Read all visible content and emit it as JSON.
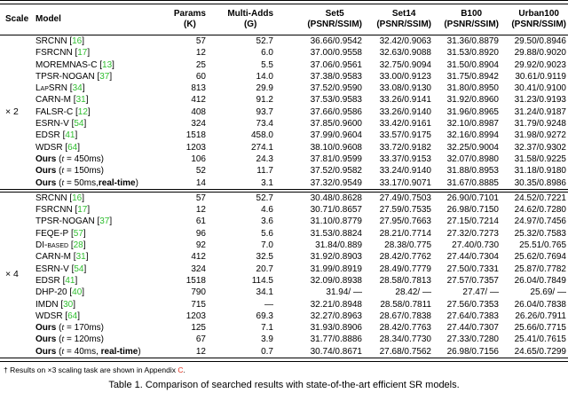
{
  "colors": {
    "citation_green": "#2fbe2f",
    "ref_red": "#e0301e"
  },
  "page": {
    "footnote": {
      "dagger": "†",
      "text_before": " Results on ×3 scaling task are shown in Appendix ",
      "appendix_ref": "C",
      "text_after": "."
    },
    "caption": "Table 1. Comparison of searched results with state-of-the-art efficient SR models."
  },
  "table": {
    "columns": [
      {
        "line1": "Scale",
        "line2": ""
      },
      {
        "line1": "Model",
        "line2": ""
      },
      {
        "line1": "Params",
        "line2": "(K)"
      },
      {
        "line1": "Multi-Adds",
        "line2": "(G)"
      },
      {
        "line1": "Set5",
        "line2": "(PSNR/SSIM)"
      },
      {
        "line1": "Set14",
        "line2": "(PSNR/SSIM)"
      },
      {
        "line1": "B100",
        "line2": "(PSNR/SSIM)"
      },
      {
        "line1": "Urban100",
        "line2": "(PSNR/SSIM)"
      }
    ],
    "sections": [
      {
        "scale": "× 2",
        "rows": [
          {
            "model": "SRCNN",
            "cite": "16",
            "params": "57",
            "madds": "52.7",
            "set5": "36.66/0.9542",
            "set14": "32.42/0.9063",
            "b100": "31.36/0.8879",
            "urban100": "29.50/0.8946"
          },
          {
            "model": "FSRCNN",
            "cite": "17",
            "params": "12",
            "madds": "6.0",
            "set5": "37.00/0.9558",
            "set14": "32.63/0.9088",
            "b100": "31.53/0.8920",
            "urban100": "29.88/0.9020"
          },
          {
            "model": "MOREMNAS-C",
            "cite": "13",
            "params": "25",
            "madds": "5.5",
            "set5": "37.06/0.9561",
            "set14": "32.75/0.9094",
            "b100": "31.50/0.8904",
            "urban100": "29.92/0.9023"
          },
          {
            "model": "TPSR-NOGAN",
            "cite": "37",
            "params": "60",
            "madds": "14.0",
            "set5": "37.38/0.9583",
            "set14": "33.00/0.9123",
            "b100": "31.75/0.8942",
            "urban100": "30.61/0.9119"
          },
          {
            "model": "LapSRN",
            "cite": "34",
            "params": "813",
            "madds": "29.9",
            "set5": "37.52/0.9590",
            "set14": "33.08/0.9130",
            "b100": "31.80/0.8950",
            "urban100": "30.41/0.9100"
          },
          {
            "model": "CARN-M",
            "cite": "31",
            "params": "412",
            "madds": "91.2",
            "set5": "37.53/0.9583",
            "set14": "33.26/0.9141",
            "b100": "31.92/0.8960",
            "urban100": "31.23/0.9193"
          },
          {
            "model": "FALSR-C",
            "cite": "12",
            "params": "408",
            "madds": "93.7",
            "set5": "37.66/0.9586",
            "set14": "33.26/0.9140",
            "b100": "31.96/0.8965",
            "urban100": "31.24/0.9187"
          },
          {
            "model": "ESRN-V",
            "cite": "54",
            "params": "324",
            "madds": "73.4",
            "set5": "37.85/0.9600",
            "set14": "33.42/0.9161",
            "b100": "32.10/0.8987",
            "urban100": "31.79/0.9248"
          },
          {
            "model": "EDSR",
            "cite": "41",
            "params": "1518",
            "madds": "458.0",
            "set5": "37.99/0.9604",
            "set14": "33.57/0.9175",
            "b100": "32.16/0.8994",
            "urban100": "31.98/0.9272"
          },
          {
            "model": "WDSR",
            "cite": "64",
            "params": "1203",
            "madds": "274.1",
            "set5": "38.10/0.9608",
            "set14": "33.72/0.9182",
            "b100": "32.25/0.9004",
            "urban100": "32.37/0.9302"
          },
          {
            "model": "Ours",
            "time": "450ms",
            "params": "106",
            "madds": "24.3",
            "set5": "37.81/0.9599",
            "set14": "33.37/0.9153",
            "b100": "32.07/0.8980",
            "urban100": "31.58/0.9225"
          },
          {
            "model": "Ours",
            "time": "150ms",
            "params": "52",
            "madds": "11.7",
            "set5": "37.52/0.9582",
            "set14": "33.24/0.9140",
            "b100": "31.88/0.8953",
            "urban100": "31.18/0.9180"
          },
          {
            "model": "Ours",
            "time": "50ms",
            "rtsep": ",",
            "realtime": "real-time",
            "params": "14",
            "madds": "3.1",
            "set5": "37.32/0.9549",
            "set14": "33.17/0.9071",
            "b100": "31.67/0.8885",
            "urban100": "30.35/0.8986"
          }
        ]
      },
      {
        "scale": "× 4",
        "rows": [
          {
            "model": "SRCNN",
            "cite": "16",
            "params": "57",
            "madds": "52.7",
            "set5": "30.48/0.8628",
            "set14": "27.49/0.7503",
            "b100": "26.90/0.7101",
            "urban100": "24.52/0.7221"
          },
          {
            "model": "FSRCNN",
            "cite": "17",
            "params": "12",
            "madds": "4.6",
            "set5": "30.71/0.8657",
            "set14": "27.59/0.7535",
            "b100": "26.98/0.7150",
            "urban100": "24.62/0.7280"
          },
          {
            "model": "TPSR-NOGAN",
            "cite": "37",
            "params": "61",
            "madds": "3.6",
            "set5": "31.10/0.8779",
            "set14": "27.95/0.7663",
            "b100": "27.15/0.7214",
            "urban100": "24.97/0.7456"
          },
          {
            "model": "FEQE-P",
            "cite": "57",
            "params": "96",
            "madds": "5.6",
            "set5": "31.53/0.8824",
            "set14": "28.21/0.7714",
            "b100": "27.32/0.7273",
            "urban100": "25.32/0.7583"
          },
          {
            "model": "DI-based",
            "cite": "28",
            "params": "92",
            "madds": "7.0",
            "set5": "31.84/0.889",
            "set14": "28.38/0.775",
            "b100": "27.40/0.730",
            "urban100": "25.51/0.765"
          },
          {
            "model": "CARN-M",
            "cite": "31",
            "params": "412",
            "madds": "32.5",
            "set5": "31.92/0.8903",
            "set14": "28.42/0.7762",
            "b100": "27.44/0.7304",
            "urban100": "25.62/0.7694"
          },
          {
            "model": "ESRN-V",
            "cite": "54",
            "params": "324",
            "madds": "20.7",
            "set5": "31.99/0.8919",
            "set14": "28.49/0.7779",
            "b100": "27.50/0.7331",
            "urban100": "25.87/0.7782"
          },
          {
            "model": "EDSR",
            "cite": "41",
            "params": "1518",
            "madds": "114.5",
            "set5": "32.09/0.8938",
            "set14": "28.58/0.7813",
            "b100": "27.57/0.7357",
            "urban100": "26.04/0.7849"
          },
          {
            "model": "DHP-20",
            "cite": "40",
            "params": "790",
            "madds": "34.1",
            "set5": "31.94/ —",
            "set14": "28.42/ —",
            "b100": "27.47/ —",
            "urban100": "25.69/ —"
          },
          {
            "model": "IMDN",
            "cite": "30",
            "params": "715",
            "madds": "—",
            "set5": "32.21/0.8948",
            "set14": "28.58/0.7811",
            "b100": "27.56/0.7353",
            "urban100": "26.04/0.7838"
          },
          {
            "model": "WDSR",
            "cite": "64",
            "params": "1203",
            "madds": "69.3",
            "set5": "32.27/0.8963",
            "set14": "28.67/0.7838",
            "b100": "27.64/0.7383",
            "urban100": "26.26/0.7911"
          },
          {
            "model": "Ours",
            "time": "170ms",
            "params": "125",
            "madds": "7.1",
            "set5": "31.93/0.8906",
            "set14": "28.42/0.7763",
            "b100": "27.44/0.7307",
            "urban100": "25.66/0.7715"
          },
          {
            "model": "Ours",
            "time": "120ms",
            "params": "67",
            "madds": "3.9",
            "set5": "31.77/0.8886",
            "set14": "28.34/0.7730",
            "b100": "27.33/0.7280",
            "urban100": "25.41/0.7615"
          },
          {
            "model": "Ours",
            "time": "40ms",
            "rtsep": ", ",
            "realtime": "real-time",
            "params": "12",
            "madds": "0.7",
            "set5": "30.74/0.8671",
            "set14": "27.68/0.7562",
            "b100": "26.98/0.7156",
            "urban100": "24.65/0.7299"
          }
        ]
      }
    ]
  }
}
